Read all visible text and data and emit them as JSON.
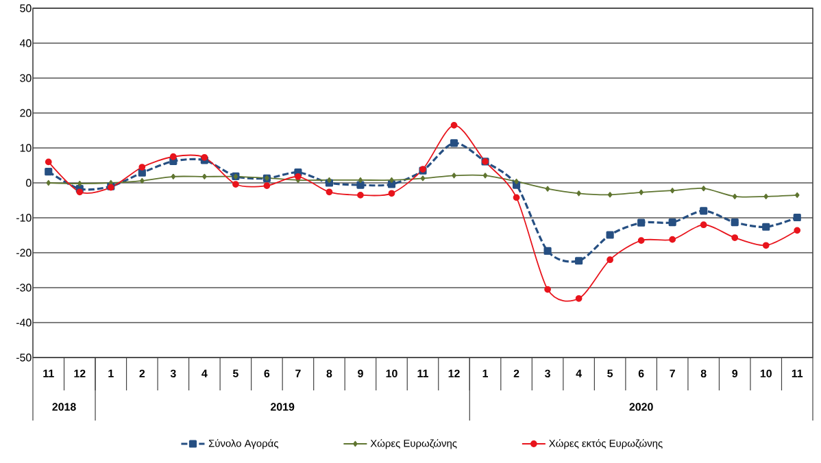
{
  "chart_data": {
    "type": "line",
    "categories": [
      "11",
      "12",
      "1",
      "2",
      "3",
      "4",
      "5",
      "6",
      "7",
      "8",
      "9",
      "10",
      "11",
      "12",
      "1",
      "2",
      "3",
      "4",
      "5",
      "6",
      "7",
      "8",
      "9",
      "10",
      "11"
    ],
    "series": [
      {
        "name": "Σύνολο Αγοράς",
        "color": "#264f82",
        "marker": "square",
        "line_style": "dashed",
        "values": [
          3.2,
          -1.7,
          -1,
          2.9,
          6.2,
          6.5,
          1.9,
          1.3,
          3,
          0,
          -0.6,
          -0.4,
          3.5,
          11.4,
          6.1,
          -0.6,
          -19.5,
          -22.3,
          -14.9,
          -11.4,
          -11.3,
          -8,
          -11.3,
          -12.6,
          -9.9
        ]
      },
      {
        "name": "Χώρες Ευρωζώνης",
        "color": "#5f7530",
        "marker": "diamond",
        "line_style": "solid",
        "values": [
          0,
          -0.2,
          0,
          0.6,
          1.8,
          1.8,
          1.8,
          1.4,
          0.8,
          0.8,
          0.8,
          0.8,
          1.3,
          2.1,
          2.1,
          0.4,
          -1.7,
          -3,
          -3.4,
          -2.7,
          -2.2,
          -1.6,
          -3.9,
          -3.9,
          -3.5
        ]
      },
      {
        "name": "Χώρες εκτός Ευρωζώνης",
        "color": "#e8141c",
        "marker": "circle",
        "line_style": "solid",
        "values": [
          6,
          -2.6,
          -1.3,
          4.5,
          7.5,
          7.3,
          -0.4,
          -0.8,
          1.8,
          -2.6,
          -3.5,
          -3,
          3.9,
          16.5,
          6.1,
          -4.2,
          -30.5,
          -33.1,
          -22,
          -16.5,
          -16.2,
          -12,
          -15.7,
          -17.9,
          -13.6
        ]
      }
    ],
    "ylim": [
      -50,
      50
    ],
    "yticks": [
      -50,
      -40,
      -30,
      -20,
      -10,
      0,
      10,
      20,
      30,
      40,
      50
    ],
    "grid": "y",
    "legend": "bottom",
    "annotations": [
      "2018",
      "2019",
      "2020"
    ]
  }
}
